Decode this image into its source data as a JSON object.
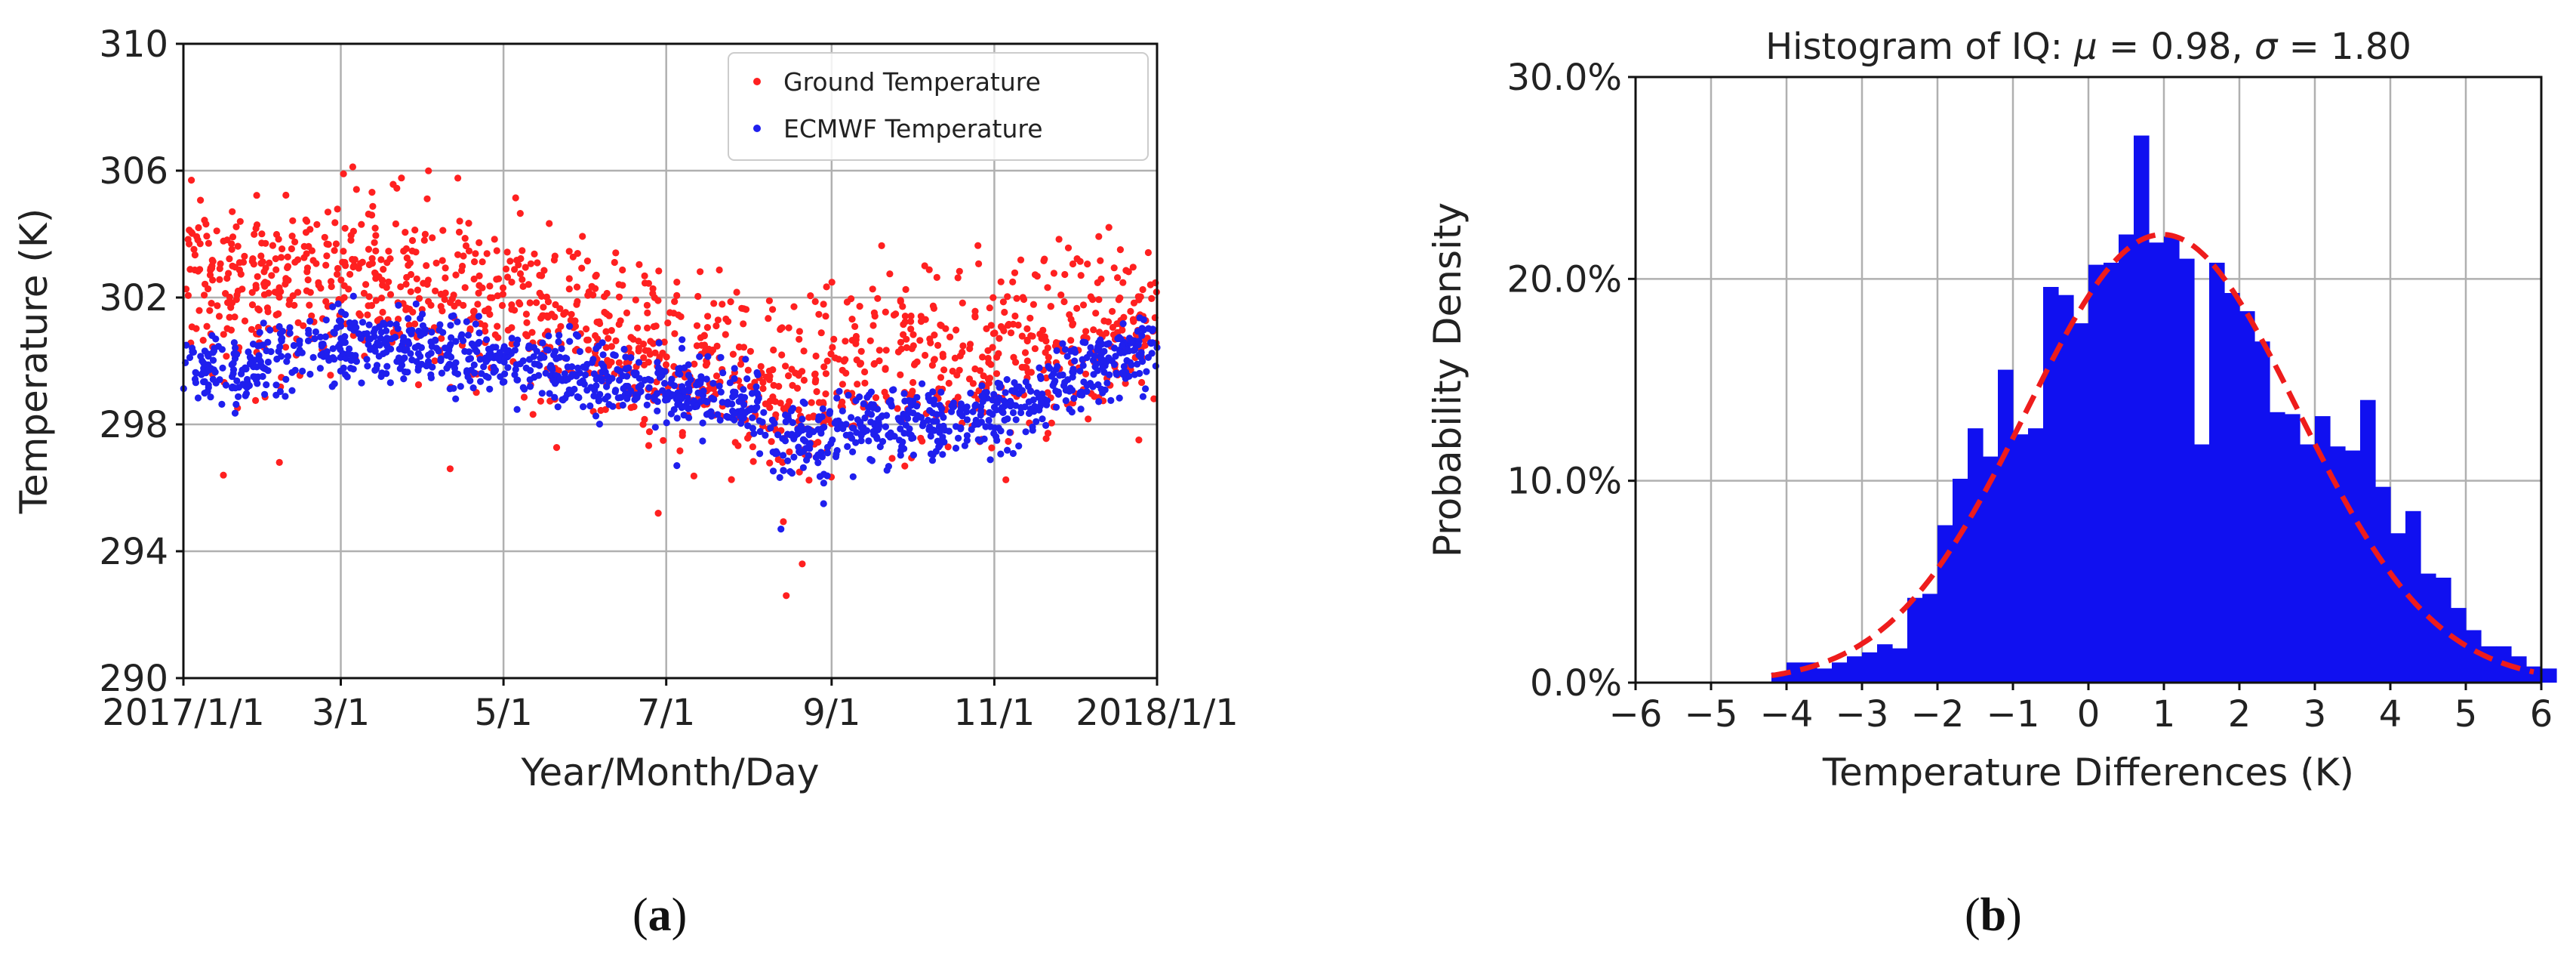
{
  "chart_data": [
    {
      "type": "scatter",
      "panel_label_open": "(",
      "panel_label_letter": "a",
      "panel_label_close": ")",
      "xlabel": "Year/Month/Day",
      "ylabel": "Temperature (K)",
      "xlim": [
        0,
        365
      ],
      "ylim": [
        290,
        310
      ],
      "yticks": [
        {
          "value": 290,
          "label": "290"
        },
        {
          "value": 294,
          "label": "294"
        },
        {
          "value": 298,
          "label": "298"
        },
        {
          "value": 302,
          "label": "302"
        },
        {
          "value": 306,
          "label": "306"
        },
        {
          "value": 310,
          "label": "310"
        }
      ],
      "xticks": [
        {
          "value": 0,
          "label": "2017/1/1"
        },
        {
          "value": 59,
          "label": "3/1"
        },
        {
          "value": 120,
          "label": "5/1"
        },
        {
          "value": 181,
          "label": "7/1"
        },
        {
          "value": 243,
          "label": "9/1"
        },
        {
          "value": 304,
          "label": "11/1"
        },
        {
          "value": 365,
          "label": "2018/1/1"
        }
      ],
      "grid": true,
      "legend_position": "top-right",
      "series": [
        {
          "name": "Ground Temperature",
          "color": "#ff2020",
          "seed": 7,
          "count": 1300,
          "trend": [
            [
              0,
              302.3
            ],
            [
              30,
              302.0
            ],
            [
              60,
              302.8
            ],
            [
              90,
              302.2
            ],
            [
              120,
              301.8
            ],
            [
              150,
              301.0
            ],
            [
              181,
              300.3
            ],
            [
              210,
              299.5
            ],
            [
              225,
              298.8
            ],
            [
              240,
              299.3
            ],
            [
              270,
              300.0
            ],
            [
              300,
              299.8
            ],
            [
              330,
              300.6
            ],
            [
              365,
              301.5
            ]
          ],
          "spread": 1.8,
          "example_points": [
            [
              3,
              305.7
            ],
            [
              60,
              305.9
            ],
            [
              226,
              292.6
            ],
            [
              232,
              293.6
            ],
            [
              178,
              295.2
            ],
            [
              36,
              296.8
            ],
            [
              100,
              296.6
            ],
            [
              15,
              296.4
            ]
          ]
        },
        {
          "name": "ECMWF Temperature",
          "color": "#1f1fee",
          "seed": 13,
          "count": 1300,
          "trend": [
            [
              0,
              300.0
            ],
            [
              20,
              299.5
            ],
            [
              40,
              300.3
            ],
            [
              60,
              300.6
            ],
            [
              90,
              300.3
            ],
            [
              120,
              300.0
            ],
            [
              150,
              299.6
            ],
            [
              170,
              299.3
            ],
            [
              190,
              298.9
            ],
            [
              215,
              298.7
            ],
            [
              222,
              297.5
            ],
            [
              240,
              297.7
            ],
            [
              270,
              298.1
            ],
            [
              300,
              298.2
            ],
            [
              320,
              298.8
            ],
            [
              340,
              299.8
            ],
            [
              365,
              300.4
            ]
          ],
          "spread": 0.75,
          "example_points": [
            [
              58,
              301.8
            ],
            [
              224,
              294.7
            ],
            [
              185,
              296.7
            ],
            [
              240,
              295.5
            ],
            [
              360,
              301.3
            ]
          ]
        }
      ]
    },
    {
      "type": "bar",
      "panel_label_open": "(",
      "panel_label_letter": "b",
      "panel_label_close": ")",
      "title": "Histogram of IQ: ",
      "title_mu_symbol": "μ",
      "title_mu_text": " = 0.98, ",
      "title_sigma_symbol": "σ",
      "title_sigma_text": " = 1.80",
      "mu": 0.98,
      "sigma": 1.8,
      "xlabel": "Temperature Differences (K)",
      "ylabel": "Probability Density",
      "xlim": [
        -6,
        6
      ],
      "ylim": [
        0,
        0.3
      ],
      "xticks": [
        {
          "value": -6,
          "label": "−6"
        },
        {
          "value": -5,
          "label": "−5"
        },
        {
          "value": -4,
          "label": "−4"
        },
        {
          "value": -3,
          "label": "−3"
        },
        {
          "value": -2,
          "label": "−2"
        },
        {
          "value": -1,
          "label": "−1"
        },
        {
          "value": 0,
          "label": "0"
        },
        {
          "value": 1,
          "label": "1"
        },
        {
          "value": 2,
          "label": "2"
        },
        {
          "value": 3,
          "label": "3"
        },
        {
          "value": 4,
          "label": "4"
        },
        {
          "value": 5,
          "label": "5"
        },
        {
          "value": 6,
          "label": "6"
        }
      ],
      "yticks": [
        {
          "value": 0.0,
          "label": "0.0%"
        },
        {
          "value": 0.1,
          "label": "10.0%"
        },
        {
          "value": 0.2,
          "label": "20.0%"
        },
        {
          "value": 0.3,
          "label": "30.0%"
        }
      ],
      "grid": true,
      "bar_color": "#1010f0",
      "curve_color": "#ee1c1c",
      "bins_start": -4.2,
      "bin_width": 0.2,
      "bin_values": [
        0.005,
        0.01,
        0.01,
        0.007,
        0.01,
        0.013,
        0.015,
        0.019,
        0.017,
        0.042,
        0.044,
        0.078,
        0.101,
        0.126,
        0.112,
        0.155,
        0.123,
        0.126,
        0.196,
        0.192,
        0.178,
        0.207,
        0.208,
        0.222,
        0.271,
        0.218,
        0.221,
        0.21,
        0.118,
        0.208,
        0.193,
        0.184,
        0.169,
        0.134,
        0.133,
        0.118,
        0.132,
        0.117,
        0.115,
        0.14,
        0.097,
        0.074,
        0.085,
        0.054,
        0.052,
        0.037,
        0.026,
        0.018,
        0.018,
        0.013,
        0.008,
        0.007
      ]
    }
  ]
}
